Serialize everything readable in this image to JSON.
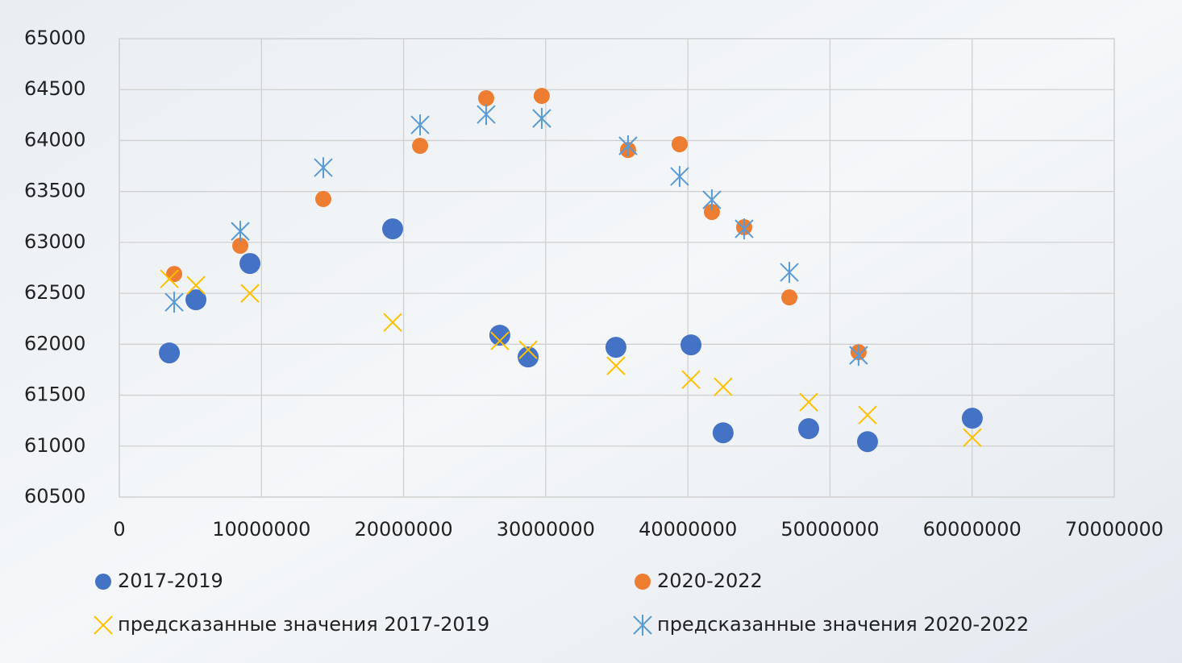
{
  "chart_data": {
    "type": "scatter",
    "xlim": [
      0,
      70000000
    ],
    "xticks": [
      0,
      10000000,
      20000000,
      30000000,
      40000000,
      50000000,
      60000000,
      70000000
    ],
    "ylim": [
      60500,
      65000
    ],
    "yticks": [
      60500,
      61000,
      61500,
      62000,
      62500,
      63000,
      63500,
      64000,
      64500,
      65000
    ],
    "grid": true,
    "series": [
      {
        "name": "2017-2019",
        "color": "#4472c4",
        "marker": "circle",
        "x": [
          3520000,
          5390000,
          9190000,
          19230000,
          26770000,
          28760000,
          34940000,
          40220000,
          42480000,
          48500000,
          52640000,
          60010000
        ],
        "values": [
          61915,
          62437,
          62793,
          63133,
          62089,
          61875,
          61970,
          61994,
          61131,
          61171,
          61044,
          61274
        ]
      },
      {
        "name": "2020-2022",
        "color": "#ed7d31",
        "marker": "circle",
        "x": [
          3860000,
          8510000,
          14350000,
          21160000,
          25810000,
          29720000,
          35790000,
          39420000,
          41690000,
          43960000,
          47140000,
          52010000
        ],
        "values": [
          62690,
          62967,
          63426,
          63948,
          64415,
          64438,
          63908,
          63964,
          63299,
          63149,
          62460,
          61922
        ]
      },
      {
        "name": "предсказанные значения 2017-2019",
        "color": "#ffc000",
        "marker": "x",
        "x": [
          3520000,
          5390000,
          9190000,
          19230000,
          26770000,
          28760000,
          34940000,
          40220000,
          42480000,
          48500000,
          52640000,
          60010000
        ],
        "values": [
          62642,
          62579,
          62500,
          62215,
          62033,
          61946,
          61788,
          61653,
          61582,
          61432,
          61305,
          61084
        ]
      },
      {
        "name": "предсказанные значения 2020-2022",
        "color": "#5b9bd5",
        "marker": "star",
        "x": [
          3860000,
          8510000,
          14350000,
          21160000,
          25810000,
          29720000,
          35790000,
          39420000,
          41690000,
          43960000,
          47140000,
          52010000
        ],
        "values": [
          62413,
          63109,
          63734,
          64153,
          64256,
          64217,
          63948,
          63647,
          63418,
          63133,
          62706,
          61891
        ]
      }
    ]
  }
}
